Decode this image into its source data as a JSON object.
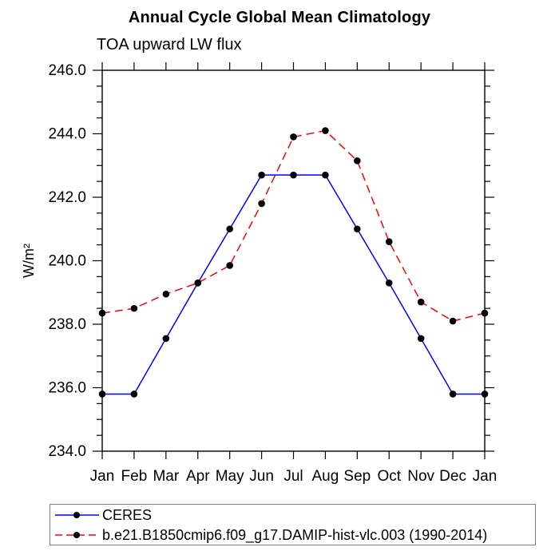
{
  "title": "Annual Cycle Global Mean Climatology",
  "subtitle": "TOA upward LW flux",
  "chart_data": {
    "type": "line",
    "x_categories": [
      "Jan",
      "Feb",
      "Mar",
      "Apr",
      "May",
      "Jun",
      "Jul",
      "Aug",
      "Sep",
      "Oct",
      "Nov",
      "Dec",
      "Jan"
    ],
    "ylabel": "W/m²",
    "ylim": [
      234.0,
      246.0
    ],
    "ytick_major_step": 2.0,
    "ytick_minor_step": 0.5,
    "ytick_labels": [
      "234.0",
      "236.0",
      "238.0",
      "240.0",
      "242.0",
      "244.0",
      "246.0"
    ],
    "grid": false,
    "legend_position": "bottom-left-box",
    "legend_border_color": "#808080",
    "marker_color": "#000000",
    "axis_color": "#000000",
    "series": [
      {
        "name": "CERES",
        "color": "#0000ff",
        "line_style": "solid",
        "marker": "black-dot",
        "values": [
          235.8,
          235.8,
          237.55,
          239.3,
          241.0,
          242.7,
          242.7,
          242.7,
          241.0,
          239.3,
          237.55,
          235.8,
          235.8
        ]
      },
      {
        "name": "b.e21.B1850cmip6.f09_g17.DAMIP-hist-vlc.003 (1990-2014)",
        "color": "#ff0000",
        "line_style": "dashed",
        "marker": "black-dot",
        "values": [
          238.35,
          238.5,
          238.95,
          239.3,
          239.85,
          241.8,
          243.9,
          244.1,
          243.15,
          240.6,
          238.7,
          238.1,
          238.35
        ]
      }
    ]
  }
}
